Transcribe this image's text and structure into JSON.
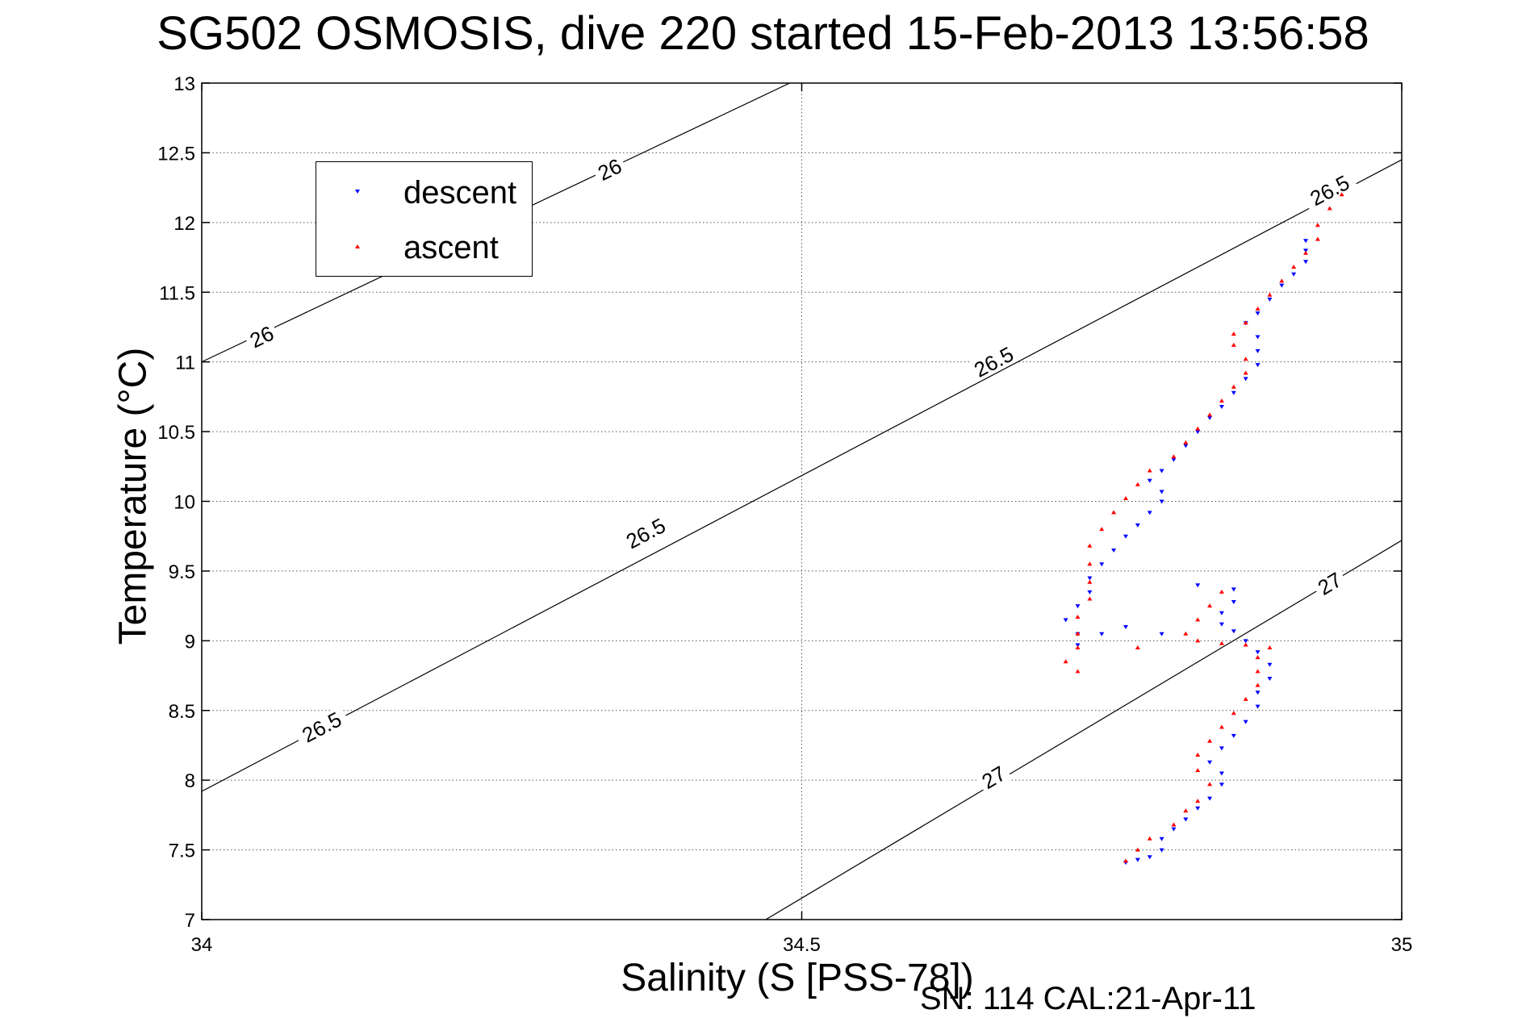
{
  "figure": {
    "title": "SG502 OSMOSIS, dive 220 started 15-Feb-2013 13:56:58",
    "footer": "SN: 114  CAL:21-Apr-11"
  },
  "chart_data": {
    "type": "scatter",
    "title": "SG502 OSMOSIS, dive 220 started 15-Feb-2013 13:56:58",
    "xlabel": "Salinity (S [PSS-78])",
    "ylabel": "Temperature (°C)",
    "xlim": [
      34,
      35
    ],
    "ylim": [
      7,
      13
    ],
    "xticks": [
      34,
      34.5,
      35
    ],
    "xtick_labels": [
      "34",
      "34.5",
      "35"
    ],
    "yticks": [
      7,
      7.5,
      8,
      8.5,
      9,
      9.5,
      10,
      10.5,
      11,
      11.5,
      12,
      12.5,
      13
    ],
    "ytick_labels": [
      "7",
      "7.5",
      "8",
      "8.5",
      "9",
      "9.5",
      "10",
      "10.5",
      "11",
      "11.5",
      "12",
      "12.5",
      "13"
    ],
    "grid": true,
    "legend_position": "top-left",
    "density_contours": [
      {
        "label": "26",
        "points": [
          [
            34.0,
            11.0
          ],
          [
            34.49,
            13.0
          ]
        ],
        "label_positions": [
          [
            34.05,
            11.18
          ],
          [
            34.34,
            12.38
          ]
        ]
      },
      {
        "label": "26.5",
        "points": [
          [
            34.0,
            7.92
          ],
          [
            35.0,
            12.45
          ]
        ],
        "label_positions": [
          [
            34.1,
            8.38
          ],
          [
            34.37,
            9.77
          ],
          [
            34.66,
            11.0
          ],
          [
            34.94,
            12.23
          ]
        ]
      },
      {
        "label": "27",
        "points": [
          [
            34.47,
            7.0
          ],
          [
            35.0,
            9.72
          ]
        ],
        "label_positions": [
          [
            34.66,
            8.02
          ],
          [
            34.94,
            9.41
          ]
        ]
      }
    ],
    "series": [
      {
        "name": "descent",
        "color": "#0000ff",
        "marker": "triangle-down",
        "points": [
          [
            34.77,
            7.41
          ],
          [
            34.78,
            7.43
          ],
          [
            34.79,
            7.45
          ],
          [
            34.8,
            7.5
          ],
          [
            34.8,
            7.58
          ],
          [
            34.81,
            7.65
          ],
          [
            34.82,
            7.72
          ],
          [
            34.83,
            7.8
          ],
          [
            34.84,
            7.87
          ],
          [
            34.85,
            7.97
          ],
          [
            34.85,
            8.05
          ],
          [
            34.84,
            8.13
          ],
          [
            34.85,
            8.23
          ],
          [
            34.86,
            8.32
          ],
          [
            34.87,
            8.42
          ],
          [
            34.88,
            8.53
          ],
          [
            34.88,
            8.63
          ],
          [
            34.89,
            8.73
          ],
          [
            34.89,
            8.83
          ],
          [
            34.88,
            8.92
          ],
          [
            34.87,
            9.0
          ],
          [
            34.86,
            9.07
          ],
          [
            34.85,
            9.12
          ],
          [
            34.85,
            9.2
          ],
          [
            34.86,
            9.28
          ],
          [
            34.86,
            9.37
          ],
          [
            34.83,
            9.4
          ],
          [
            34.8,
            9.05
          ],
          [
            34.77,
            9.1
          ],
          [
            34.75,
            9.05
          ],
          [
            34.73,
            8.97
          ],
          [
            34.73,
            9.05
          ],
          [
            34.72,
            9.15
          ],
          [
            34.73,
            9.25
          ],
          [
            34.74,
            9.35
          ],
          [
            34.74,
            9.45
          ],
          [
            34.75,
            9.55
          ],
          [
            34.76,
            9.65
          ],
          [
            34.77,
            9.75
          ],
          [
            34.78,
            9.83
          ],
          [
            34.79,
            9.92
          ],
          [
            34.8,
            10.0
          ],
          [
            34.8,
            10.07
          ],
          [
            34.79,
            10.15
          ],
          [
            34.8,
            10.22
          ],
          [
            34.81,
            10.3
          ],
          [
            34.82,
            10.4
          ],
          [
            34.83,
            10.5
          ],
          [
            34.84,
            10.6
          ],
          [
            34.85,
            10.68
          ],
          [
            34.86,
            10.78
          ],
          [
            34.87,
            10.88
          ],
          [
            34.88,
            10.98
          ],
          [
            34.88,
            11.08
          ],
          [
            34.88,
            11.18
          ],
          [
            34.87,
            11.28
          ],
          [
            34.88,
            11.35
          ],
          [
            34.89,
            11.45
          ],
          [
            34.9,
            11.55
          ],
          [
            34.91,
            11.63
          ],
          [
            34.92,
            11.72
          ],
          [
            34.92,
            11.8
          ],
          [
            34.92,
            11.87
          ]
        ]
      },
      {
        "name": "ascent",
        "color": "#ff0000",
        "marker": "triangle-up",
        "points": [
          [
            34.77,
            7.42
          ],
          [
            34.78,
            7.5
          ],
          [
            34.79,
            7.58
          ],
          [
            34.81,
            7.68
          ],
          [
            34.82,
            7.78
          ],
          [
            34.83,
            7.85
          ],
          [
            34.84,
            7.97
          ],
          [
            34.83,
            8.07
          ],
          [
            34.83,
            8.18
          ],
          [
            34.84,
            8.28
          ],
          [
            34.85,
            8.38
          ],
          [
            34.86,
            8.48
          ],
          [
            34.87,
            8.58
          ],
          [
            34.88,
            8.68
          ],
          [
            34.88,
            8.78
          ],
          [
            34.88,
            8.88
          ],
          [
            34.89,
            8.95
          ],
          [
            34.87,
            8.97
          ],
          [
            34.85,
            8.98
          ],
          [
            34.83,
            9.0
          ],
          [
            34.82,
            9.05
          ],
          [
            34.83,
            9.15
          ],
          [
            34.84,
            9.25
          ],
          [
            34.85,
            9.35
          ],
          [
            34.78,
            8.95
          ],
          [
            34.73,
            8.78
          ],
          [
            34.72,
            8.85
          ],
          [
            34.73,
            8.95
          ],
          [
            34.73,
            9.05
          ],
          [
            34.73,
            9.17
          ],
          [
            34.74,
            9.3
          ],
          [
            34.74,
            9.42
          ],
          [
            34.74,
            9.55
          ],
          [
            34.74,
            9.68
          ],
          [
            34.75,
            9.8
          ],
          [
            34.76,
            9.92
          ],
          [
            34.77,
            10.02
          ],
          [
            34.78,
            10.12
          ],
          [
            34.79,
            10.22
          ],
          [
            34.81,
            10.32
          ],
          [
            34.82,
            10.42
          ],
          [
            34.83,
            10.52
          ],
          [
            34.84,
            10.62
          ],
          [
            34.85,
            10.72
          ],
          [
            34.86,
            10.82
          ],
          [
            34.87,
            10.92
          ],
          [
            34.87,
            11.02
          ],
          [
            34.86,
            11.12
          ],
          [
            34.86,
            11.2
          ],
          [
            34.87,
            11.28
          ],
          [
            34.88,
            11.38
          ],
          [
            34.89,
            11.48
          ],
          [
            34.9,
            11.58
          ],
          [
            34.91,
            11.68
          ],
          [
            34.92,
            11.78
          ],
          [
            34.93,
            11.88
          ],
          [
            34.93,
            11.98
          ],
          [
            34.94,
            12.1
          ],
          [
            34.95,
            12.2
          ]
        ]
      }
    ]
  }
}
